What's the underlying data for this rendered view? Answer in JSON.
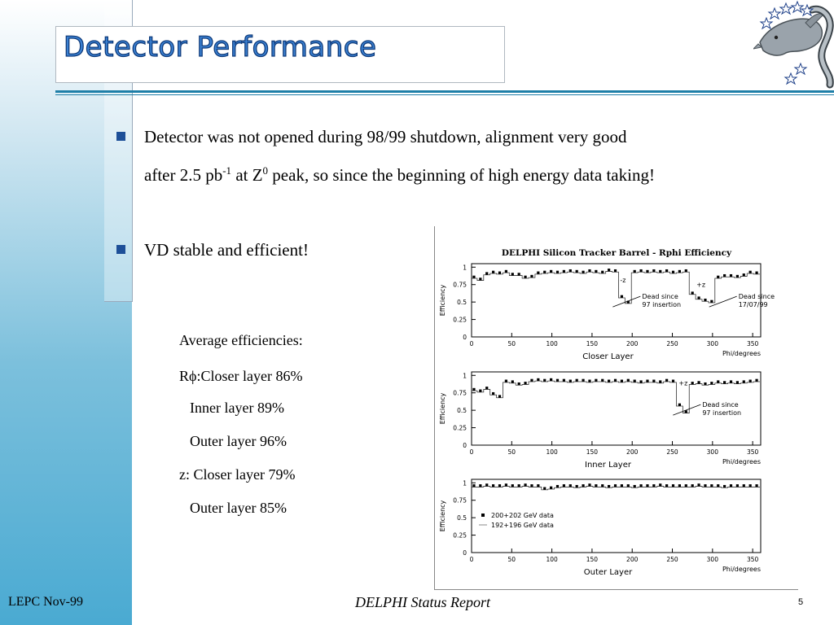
{
  "slide": {
    "title": "Detector Performance",
    "bullets": [
      {
        "line1": "Detector was not opened during 98/99 shutdown, alignment very good",
        "line2_a": "after 2.5 pb",
        "line2_sup1": "-1",
        "line2_b": " at Z",
        "line2_sup2": "0",
        "line2_c": " peak, so since the beginning of high energy data taking!"
      },
      {
        "text": "VD stable and efficient!"
      }
    ],
    "efficiencies": {
      "heading": "Average efficiencies:",
      "rphi_prefix": "R",
      "rphi_phi": "ϕ",
      "rphi_closer": ":Closer layer 86%",
      "rphi_inner": "Inner layer 89%",
      "rphi_outer": "Outer layer 96%",
      "z_closer": "z: Closer layer 79%",
      "z_outer": "Outer layer 85%"
    }
  },
  "chart_data": {
    "type": "scatter",
    "title": "DELPHI Silicon Tracker Barrel - Rphi Efficiency",
    "panels": [
      {
        "layer": "Closer Layer",
        "xlabel": "Phi/degrees",
        "ylabel": "Efficiency",
        "xlim": [
          0,
          360
        ],
        "ylim": [
          0,
          1.05
        ],
        "xticks": [
          "0",
          "50",
          "100",
          "150",
          "200",
          "250",
          "300",
          "350"
        ],
        "yticks": [
          "0",
          "0.25",
          "0.5",
          "0.75",
          "1"
        ],
        "annotations": [
          {
            "text_lines": [
              "Dead since",
              "97 insertion"
            ],
            "phi": 190,
            "eff": 0.5
          },
          {
            "text_lines": [
              "Dead since",
              "17/07/99"
            ],
            "phi": 310,
            "eff": 0.5
          }
        ],
        "marker_labels": [
          {
            "text": "-z",
            "phi": 185,
            "eff": 0.78
          },
          {
            "text": "+z",
            "phi": 280,
            "eff": 0.72
          }
        ],
        "points": [
          [
            3,
            0.86
          ],
          [
            11,
            0.83
          ],
          [
            19,
            0.91
          ],
          [
            27,
            0.93
          ],
          [
            35,
            0.92
          ],
          [
            43,
            0.94
          ],
          [
            51,
            0.9
          ],
          [
            59,
            0.9
          ],
          [
            67,
            0.86
          ],
          [
            75,
            0.87
          ],
          [
            83,
            0.92
          ],
          [
            91,
            0.93
          ],
          [
            99,
            0.94
          ],
          [
            107,
            0.93
          ],
          [
            115,
            0.94
          ],
          [
            123,
            0.95
          ],
          [
            131,
            0.94
          ],
          [
            139,
            0.93
          ],
          [
            147,
            0.95
          ],
          [
            155,
            0.94
          ],
          [
            163,
            0.93
          ],
          [
            171,
            0.96
          ],
          [
            179,
            0.95
          ],
          [
            187,
            0.58
          ],
          [
            195,
            0.5
          ],
          [
            203,
            0.94
          ],
          [
            211,
            0.95
          ],
          [
            219,
            0.94
          ],
          [
            227,
            0.95
          ],
          [
            235,
            0.94
          ],
          [
            243,
            0.95
          ],
          [
            251,
            0.93
          ],
          [
            259,
            0.94
          ],
          [
            267,
            0.95
          ],
          [
            275,
            0.63
          ],
          [
            283,
            0.56
          ],
          [
            291,
            0.53
          ],
          [
            299,
            0.51
          ],
          [
            307,
            0.86
          ],
          [
            315,
            0.88
          ],
          [
            323,
            0.88
          ],
          [
            331,
            0.87
          ],
          [
            339,
            0.89
          ],
          [
            347,
            0.93
          ],
          [
            355,
            0.92
          ]
        ]
      },
      {
        "layer": "Inner Layer",
        "xlabel": "Phi/degrees",
        "ylabel": "Efficiency",
        "xlim": [
          0,
          360
        ],
        "ylim": [
          0,
          1.05
        ],
        "xticks": [
          "0",
          "50",
          "100",
          "150",
          "200",
          "250",
          "300",
          "350"
        ],
        "yticks": [
          "0",
          "0.25",
          "0.5",
          "0.75",
          "1"
        ],
        "annotations": [
          {
            "text_lines": [
              "Dead since",
              "97 insertion"
            ],
            "phi": 265,
            "eff": 0.5
          }
        ],
        "marker_labels": [
          {
            "text": "+z",
            "phi": 258,
            "eff": 0.86
          }
        ],
        "points": [
          [
            3,
            0.8
          ],
          [
            11,
            0.78
          ],
          [
            19,
            0.82
          ],
          [
            27,
            0.74
          ],
          [
            35,
            0.7
          ],
          [
            43,
            0.92
          ],
          [
            51,
            0.91
          ],
          [
            59,
            0.88
          ],
          [
            67,
            0.89
          ],
          [
            75,
            0.93
          ],
          [
            83,
            0.94
          ],
          [
            91,
            0.93
          ],
          [
            99,
            0.94
          ],
          [
            107,
            0.93
          ],
          [
            115,
            0.93
          ],
          [
            123,
            0.92
          ],
          [
            131,
            0.93
          ],
          [
            139,
            0.93
          ],
          [
            147,
            0.92
          ],
          [
            155,
            0.93
          ],
          [
            163,
            0.93
          ],
          [
            171,
            0.92
          ],
          [
            179,
            0.93
          ],
          [
            187,
            0.92
          ],
          [
            195,
            0.93
          ],
          [
            203,
            0.92
          ],
          [
            211,
            0.91
          ],
          [
            219,
            0.92
          ],
          [
            227,
            0.92
          ],
          [
            235,
            0.91
          ],
          [
            243,
            0.93
          ],
          [
            251,
            0.92
          ],
          [
            259,
            0.58
          ],
          [
            267,
            0.48
          ],
          [
            275,
            0.89
          ],
          [
            283,
            0.9
          ],
          [
            291,
            0.88
          ],
          [
            299,
            0.89
          ],
          [
            307,
            0.91
          ],
          [
            315,
            0.9
          ],
          [
            323,
            0.91
          ],
          [
            331,
            0.9
          ],
          [
            339,
            0.91
          ],
          [
            347,
            0.92
          ],
          [
            355,
            0.93
          ]
        ]
      },
      {
        "layer": "Outer Layer",
        "xlabel": "Phi/degrees",
        "ylabel": "Efficiency",
        "xlim": [
          0,
          360
        ],
        "ylim": [
          0,
          1.05
        ],
        "xticks": [
          "0",
          "50",
          "100",
          "150",
          "200",
          "250",
          "300",
          "350"
        ],
        "yticks": [
          "0",
          "0.25",
          "0.5",
          "0.75",
          "1"
        ],
        "legend": [
          "200+202 GeV data",
          "192+196 GeV data"
        ],
        "points": [
          [
            3,
            0.96
          ],
          [
            11,
            0.96
          ],
          [
            19,
            0.97
          ],
          [
            27,
            0.96
          ],
          [
            35,
            0.96
          ],
          [
            43,
            0.97
          ],
          [
            51,
            0.96
          ],
          [
            59,
            0.96
          ],
          [
            67,
            0.97
          ],
          [
            75,
            0.96
          ],
          [
            83,
            0.96
          ],
          [
            91,
            0.92
          ],
          [
            99,
            0.93
          ],
          [
            107,
            0.95
          ],
          [
            115,
            0.96
          ],
          [
            123,
            0.96
          ],
          [
            131,
            0.95
          ],
          [
            139,
            0.96
          ],
          [
            147,
            0.97
          ],
          [
            155,
            0.96
          ],
          [
            163,
            0.96
          ],
          [
            171,
            0.95
          ],
          [
            179,
            0.96
          ],
          [
            187,
            0.96
          ],
          [
            195,
            0.96
          ],
          [
            203,
            0.95
          ],
          [
            211,
            0.96
          ],
          [
            219,
            0.96
          ],
          [
            227,
            0.96
          ],
          [
            235,
            0.97
          ],
          [
            243,
            0.96
          ],
          [
            251,
            0.96
          ],
          [
            259,
            0.96
          ],
          [
            267,
            0.96
          ],
          [
            275,
            0.96
          ],
          [
            283,
            0.97
          ],
          [
            291,
            0.96
          ],
          [
            299,
            0.96
          ],
          [
            307,
            0.96
          ],
          [
            315,
            0.95
          ],
          [
            323,
            0.96
          ],
          [
            331,
            0.96
          ],
          [
            339,
            0.96
          ],
          [
            347,
            0.96
          ],
          [
            355,
            0.96
          ]
        ]
      }
    ]
  },
  "footer": {
    "left": "LEPC Nov-99",
    "center": "DELPHI Status Report",
    "page": "5"
  },
  "colors": {
    "title_fill": "#3b82d4",
    "bullet": "#1d4f98",
    "rule": "#1f7fa8"
  }
}
